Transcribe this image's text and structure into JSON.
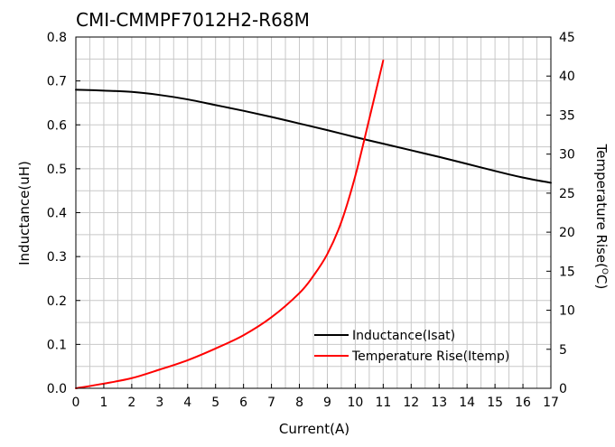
{
  "chart_data": {
    "type": "line",
    "title": "CMI-CMMPF7012H2-R68M",
    "xlabel": "Current(A)",
    "ylabel": "Inductance(uH)",
    "y2label": "Temperature Rise(",
    "y2label_sup": "O",
    "y2label_tail": "C)",
    "xlim": [
      0,
      17
    ],
    "ylim": [
      0,
      0.8
    ],
    "y2lim": [
      0,
      45
    ],
    "x_ticks": [
      "0",
      "1",
      "2",
      "3",
      "4",
      "5",
      "6",
      "7",
      "8",
      "9",
      "10",
      "11",
      "12",
      "13",
      "14",
      "15",
      "16",
      "17"
    ],
    "y_ticks": [
      "0.0",
      "0.1",
      "0.2",
      "0.3",
      "0.4",
      "0.5",
      "0.6",
      "0.7",
      "0.8"
    ],
    "y2_ticks": [
      "0",
      "5",
      "10",
      "15",
      "20",
      "25",
      "30",
      "35",
      "40",
      "45"
    ],
    "grid": true,
    "legend_position": "bottom-right",
    "series": [
      {
        "name": "Inductance(Isat)",
        "axis": "left",
        "color": "#000000",
        "x": [
          0,
          1,
          2,
          3,
          4,
          5,
          6,
          7,
          8,
          9,
          10,
          11,
          12,
          13,
          14,
          15,
          16,
          17
        ],
        "y": [
          0.68,
          0.678,
          0.675,
          0.668,
          0.658,
          0.645,
          0.632,
          0.618,
          0.603,
          0.588,
          0.572,
          0.557,
          0.542,
          0.527,
          0.511,
          0.495,
          0.48,
          0.468
        ]
      },
      {
        "name": "Temperature Rise(Itemp)",
        "axis": "right",
        "color": "#ff0000",
        "x": [
          0,
          1,
          2,
          3,
          4,
          5,
          6,
          7,
          8,
          8.5,
          9,
          9.5,
          10,
          10.5,
          11
        ],
        "y": [
          0,
          0.6,
          1.3,
          2.4,
          3.6,
          5.1,
          6.8,
          9.1,
          12.2,
          14.4,
          17.2,
          21.3,
          27.2,
          34.5,
          42.0
        ]
      }
    ]
  }
}
